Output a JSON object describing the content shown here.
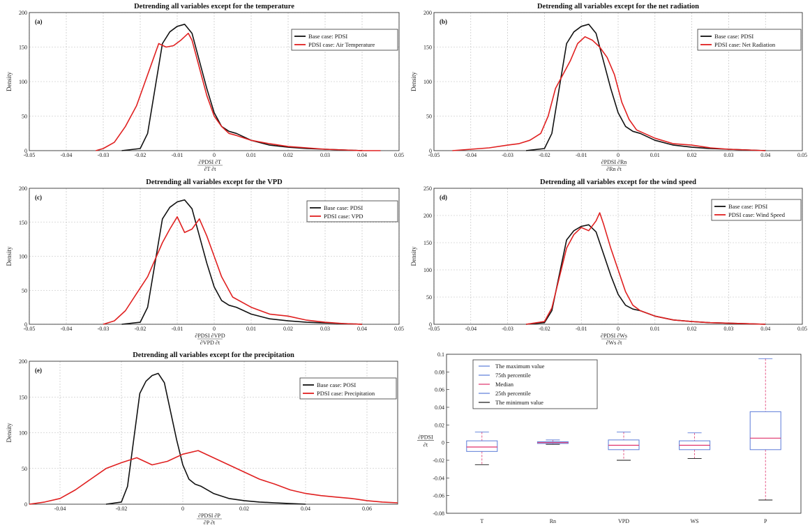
{
  "chart_data": [
    {
      "type": "line",
      "panel": "(a)",
      "title": "Detrending all variables except for the temperature",
      "ylabel": "Density",
      "xlabel_num": "∂PDSI ∂T",
      "xlabel_den": "∂T ∂t",
      "xlim": [
        -0.05,
        0.05
      ],
      "ylim": [
        0,
        200
      ],
      "xticks": [
        -0.05,
        -0.04,
        -0.03,
        -0.02,
        -0.01,
        0,
        0.01,
        0.02,
        0.03,
        0.04,
        0.05
      ],
      "xtick_labels": [
        "-0.05",
        "-0.04",
        "-0.03",
        "-0.02",
        "-0.01",
        "0",
        "0.01",
        "0.02",
        "0.03",
        "0.04",
        "0.05"
      ],
      "yticks": [
        0,
        50,
        100,
        150,
        200
      ],
      "ytick_labels": [
        "0",
        "50",
        "100",
        "150",
        "200"
      ],
      "legend_position": "top-right",
      "series": [
        {
          "name": "Base case: PDSI",
          "color": "#111111",
          "x": [
            -0.025,
            -0.02,
            -0.018,
            -0.016,
            -0.014,
            -0.012,
            -0.01,
            -0.008,
            -0.006,
            -0.004,
            -0.002,
            0,
            0.002,
            0.004,
            0.006,
            0.01,
            0.015,
            0.02,
            0.025,
            0.03,
            0.035,
            0.04
          ],
          "y": [
            0,
            3,
            25,
            90,
            155,
            172,
            180,
            183,
            170,
            130,
            90,
            55,
            35,
            28,
            25,
            15,
            8,
            5,
            3,
            2,
            1,
            0
          ]
        },
        {
          "name": "PDSI case: Air Temperature",
          "color": "#e02020",
          "x": [
            -0.032,
            -0.03,
            -0.027,
            -0.024,
            -0.021,
            -0.019,
            -0.017,
            -0.015,
            -0.013,
            -0.011,
            -0.009,
            -0.007,
            -0.006,
            -0.004,
            -0.002,
            0,
            0.002,
            0.004,
            0.006,
            0.01,
            0.015,
            0.02,
            0.025,
            0.03,
            0.035,
            0.04,
            0.045
          ],
          "y": [
            0,
            3,
            12,
            35,
            65,
            95,
            125,
            155,
            150,
            152,
            160,
            170,
            160,
            120,
            80,
            50,
            35,
            25,
            22,
            15,
            10,
            6,
            4,
            2,
            1,
            0,
            0
          ]
        }
      ]
    },
    {
      "type": "line",
      "panel": "(b)",
      "title": "Detrending all variables except for the net radiation",
      "ylabel": "Density",
      "xlabel_num": "∂PDSI ∂Rn",
      "xlabel_den": "∂Rn ∂t",
      "xlim": [
        -0.05,
        0.05
      ],
      "ylim": [
        0,
        200
      ],
      "xticks": [
        -0.05,
        -0.04,
        -0.03,
        -0.02,
        -0.01,
        0,
        0.01,
        0.02,
        0.03,
        0.04,
        0.05
      ],
      "xtick_labels": [
        "-0.05",
        "-0.04",
        "-0.03",
        "-0.02",
        "-0.01",
        "0",
        "0.01",
        "0.02",
        "0.03",
        "0.04",
        "0.05"
      ],
      "yticks": [
        0,
        50,
        100,
        150,
        200
      ],
      "ytick_labels": [
        "0",
        "50",
        "100",
        "150",
        "200"
      ],
      "legend_position": "top-right",
      "series": [
        {
          "name": "Base case: PDSI",
          "color": "#111111",
          "x": [
            -0.025,
            -0.02,
            -0.018,
            -0.016,
            -0.014,
            -0.012,
            -0.01,
            -0.008,
            -0.006,
            -0.004,
            -0.002,
            0,
            0.002,
            0.004,
            0.006,
            0.01,
            0.015,
            0.02,
            0.025,
            0.03,
            0.035,
            0.04
          ],
          "y": [
            0,
            3,
            25,
            90,
            155,
            172,
            180,
            183,
            170,
            130,
            90,
            55,
            35,
            28,
            25,
            15,
            8,
            5,
            3,
            2,
            1,
            0
          ]
        },
        {
          "name": "PDSI case: Net Radiation",
          "color": "#e02020",
          "x": [
            -0.045,
            -0.04,
            -0.035,
            -0.03,
            -0.027,
            -0.024,
            -0.021,
            -0.019,
            -0.017,
            -0.015,
            -0.013,
            -0.011,
            -0.009,
            -0.007,
            -0.005,
            -0.003,
            -0.001,
            0.001,
            0.003,
            0.005,
            0.01,
            0.015,
            0.02,
            0.025,
            0.03,
            0.035,
            0.04
          ],
          "y": [
            0,
            2,
            4,
            8,
            10,
            15,
            25,
            50,
            90,
            110,
            130,
            155,
            165,
            160,
            150,
            135,
            110,
            70,
            45,
            30,
            18,
            10,
            8,
            4,
            2,
            1,
            0
          ]
        }
      ]
    },
    {
      "type": "line",
      "panel": "(c)",
      "title": "Detrending all variables except for the VPD",
      "ylabel": "Density",
      "xlabel_num": "∂PDSI ∂VPD",
      "xlabel_den": "∂VPD ∂t",
      "xlim": [
        -0.05,
        0.05
      ],
      "ylim": [
        0,
        200
      ],
      "xticks": [
        -0.05,
        -0.04,
        -0.03,
        -0.02,
        -0.01,
        0,
        0.01,
        0.02,
        0.03,
        0.04,
        0.05
      ],
      "xtick_labels": [
        "-0.05",
        "-0.04",
        "-0.03",
        "-0.02",
        "-0.01",
        "0",
        "0.01",
        "0.02",
        "0.03",
        "0.04",
        "0.05"
      ],
      "yticks": [
        0,
        50,
        100,
        150,
        200
      ],
      "ytick_labels": [
        "0",
        "50",
        "100",
        "150",
        "200"
      ],
      "legend_position": "top-right",
      "series": [
        {
          "name": "Base case: PDSI",
          "color": "#111111",
          "x": [
            -0.025,
            -0.02,
            -0.018,
            -0.016,
            -0.014,
            -0.012,
            -0.01,
            -0.008,
            -0.006,
            -0.004,
            -0.002,
            0,
            0.002,
            0.004,
            0.006,
            0.01,
            0.015,
            0.02,
            0.025,
            0.03,
            0.035,
            0.04
          ],
          "y": [
            0,
            3,
            25,
            90,
            155,
            172,
            180,
            183,
            170,
            130,
            90,
            55,
            35,
            28,
            25,
            15,
            8,
            5,
            3,
            2,
            1,
            0
          ]
        },
        {
          "name": "PDSI case: VPD",
          "color": "#e02020",
          "x": [
            -0.03,
            -0.027,
            -0.024,
            -0.021,
            -0.018,
            -0.016,
            -0.014,
            -0.012,
            -0.01,
            -0.008,
            -0.006,
            -0.004,
            -0.002,
            0,
            0.002,
            0.005,
            0.01,
            0.015,
            0.02,
            0.025,
            0.03,
            0.035,
            0.04
          ],
          "y": [
            0,
            5,
            20,
            45,
            70,
            95,
            120,
            140,
            158,
            135,
            140,
            155,
            130,
            100,
            70,
            40,
            25,
            15,
            12,
            6,
            3,
            1,
            0
          ]
        }
      ]
    },
    {
      "type": "line",
      "panel": "(d)",
      "title": "Detrending all variables except for the wind speed",
      "ylabel": "Density",
      "xlabel_num": "∂PDSI ∂Ws",
      "xlabel_den": "∂Ws ∂t",
      "xlim": [
        -0.05,
        0.05
      ],
      "ylim": [
        0,
        250
      ],
      "xticks": [
        -0.05,
        -0.04,
        -0.03,
        -0.02,
        -0.01,
        0,
        0.01,
        0.02,
        0.03,
        0.04,
        0.05
      ],
      "xtick_labels": [
        "-0.05",
        "-0.04",
        "-0.03",
        "-0.02",
        "-0.01",
        "0",
        "0.01",
        "0.02",
        "0.03",
        "0.04",
        "0.05"
      ],
      "yticks": [
        0,
        50,
        100,
        150,
        200,
        250
      ],
      "ytick_labels": [
        "0",
        "50",
        "100",
        "150",
        "200",
        "250"
      ],
      "legend_position": "top-right",
      "series": [
        {
          "name": "Base case: PDSI",
          "color": "#111111",
          "x": [
            -0.025,
            -0.02,
            -0.018,
            -0.016,
            -0.014,
            -0.012,
            -0.01,
            -0.008,
            -0.006,
            -0.004,
            -0.002,
            0,
            0.002,
            0.004,
            0.006,
            0.01,
            0.015,
            0.02,
            0.025,
            0.03,
            0.035,
            0.04
          ],
          "y": [
            0,
            3,
            25,
            90,
            155,
            172,
            180,
            183,
            170,
            130,
            90,
            55,
            35,
            28,
            25,
            15,
            8,
            5,
            3,
            2,
            1,
            0
          ]
        },
        {
          "name": "PDSI case: Wind Speed",
          "color": "#e02020",
          "x": [
            -0.025,
            -0.02,
            -0.018,
            -0.016,
            -0.014,
            -0.012,
            -0.01,
            -0.008,
            -0.006,
            -0.005,
            -0.004,
            -0.002,
            0,
            0.002,
            0.004,
            0.006,
            0.01,
            0.015,
            0.02,
            0.025,
            0.03,
            0.035,
            0.04
          ],
          "y": [
            0,
            5,
            30,
            85,
            140,
            165,
            178,
            172,
            190,
            205,
            185,
            140,
            100,
            60,
            35,
            25,
            15,
            8,
            5,
            3,
            2,
            1,
            0
          ]
        }
      ]
    },
    {
      "type": "line",
      "panel": "(e)",
      "title": "Detrending all variables except for the precipitation",
      "ylabel": "Density",
      "xlabel_num": "∂PDSI ∂P",
      "xlabel_den": "∂P ∂t",
      "xlim": [
        -0.05,
        0.07
      ],
      "ylim": [
        0,
        200
      ],
      "xticks": [
        -0.04,
        -0.02,
        0,
        0.02,
        0.04,
        0.06
      ],
      "xtick_labels": [
        "-0.04",
        "-0.02",
        "0",
        "0.02",
        "0.04",
        "0.06"
      ],
      "yticks": [
        0,
        50,
        100,
        150,
        200
      ],
      "ytick_labels": [
        "0",
        "50",
        "100",
        "150",
        "200"
      ],
      "legend_position": "top-right",
      "series": [
        {
          "name": "Base case: POSI",
          "color": "#111111",
          "x": [
            -0.025,
            -0.02,
            -0.018,
            -0.016,
            -0.014,
            -0.012,
            -0.01,
            -0.008,
            -0.006,
            -0.004,
            -0.002,
            0,
            0.002,
            0.004,
            0.006,
            0.01,
            0.015,
            0.02,
            0.025,
            0.03,
            0.035,
            0.04
          ],
          "y": [
            0,
            3,
            25,
            90,
            155,
            172,
            180,
            183,
            170,
            130,
            90,
            55,
            35,
            28,
            25,
            15,
            8,
            5,
            3,
            2,
            1,
            0
          ]
        },
        {
          "name": "PDSI case: Precipitation",
          "color": "#e02020",
          "x": [
            -0.05,
            -0.045,
            -0.04,
            -0.035,
            -0.03,
            -0.025,
            -0.02,
            -0.015,
            -0.01,
            -0.005,
            0,
            0.005,
            0.01,
            0.015,
            0.02,
            0.025,
            0.03,
            0.035,
            0.04,
            0.045,
            0.05,
            0.055,
            0.06,
            0.065,
            0.07
          ],
          "y": [
            0,
            3,
            8,
            20,
            35,
            50,
            58,
            65,
            55,
            60,
            70,
            75,
            65,
            55,
            45,
            35,
            28,
            20,
            15,
            12,
            10,
            8,
            5,
            3,
            2
          ]
        }
      ]
    }
  ],
  "boxplot": {
    "type": "box",
    "ylabel_num": "∂PDSI",
    "ylabel_den": "∂t",
    "ylim": [
      -0.08,
      0.1
    ],
    "yticks": [
      -0.08,
      -0.06,
      -0.04,
      -0.02,
      0,
      0.02,
      0.04,
      0.06,
      0.08,
      0.1
    ],
    "ytick_labels": [
      "-0.08",
      "-0.06",
      "-0.04",
      "-0.02",
      "0",
      "0.02",
      "0.04",
      "0.06",
      "0.08",
      "0.1"
    ],
    "categories": [
      "T",
      "Rn",
      "VPD",
      "WS",
      "P"
    ],
    "legend": [
      {
        "label": "The maximum value",
        "color": "#5a7bd8"
      },
      {
        "label": "75th percentile",
        "color": "#5a7bd8"
      },
      {
        "label": "Median",
        "color": "#e0306a"
      },
      {
        "label": "25th percentile",
        "color": "#5a7bd8"
      },
      {
        "label": "The minimum value",
        "color": "#111111"
      }
    ],
    "legend_position": "top-left",
    "boxes": [
      {
        "min": -0.025,
        "q1": -0.01,
        "median": -0.005,
        "q3": 0.002,
        "max": 0.012
      },
      {
        "min": -0.002,
        "q1": -0.001,
        "median": 0.0,
        "q3": 0.001,
        "max": 0.003
      },
      {
        "min": -0.02,
        "q1": -0.008,
        "median": -0.003,
        "q3": 0.003,
        "max": 0.012
      },
      {
        "min": -0.018,
        "q1": -0.008,
        "median": -0.003,
        "q3": 0.002,
        "max": 0.011
      },
      {
        "min": -0.065,
        "q1": -0.008,
        "median": 0.005,
        "q3": 0.035,
        "max": 0.095
      }
    ],
    "colors": {
      "box": "#5a7bd8",
      "median": "#e0306a",
      "whisker": "#e0306a"
    }
  }
}
